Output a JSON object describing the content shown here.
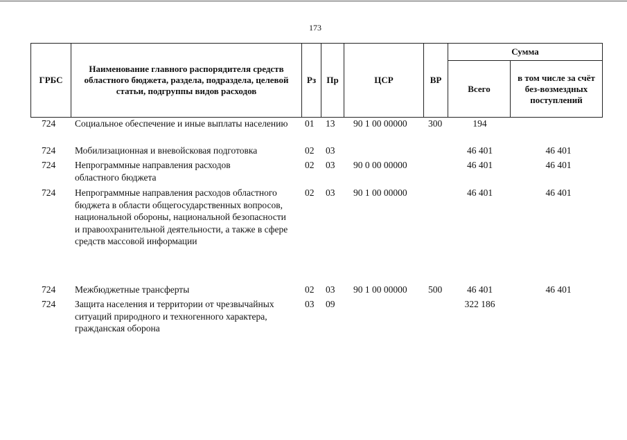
{
  "page_number": "173",
  "header": {
    "grbs": "ГРБС",
    "name": "Наименование главного распорядителя средств областного бюджета, раздела, подраздела, целевой статьи, подгруппы видов расходов",
    "rz": "Рз",
    "pr": "Пр",
    "csr": "ЦСР",
    "vr": "ВР",
    "sum": "Сумма",
    "total": "Всего",
    "free": "в том числе за счёт без-возмездных поступлений"
  },
  "rows": [
    {
      "grbs": "724",
      "name": "Социальное обеспечение и иные выплаты населению",
      "rz": "01",
      "pr": "13",
      "csr": "90 1 00 00000",
      "vr": "300",
      "total": "194",
      "free": ""
    },
    {
      "grbs": "724",
      "name": "Мобилизационная и вневойсковая подготовка",
      "rz": "02",
      "pr": "03",
      "csr": "",
      "vr": "",
      "total": "46 401",
      "free": "46 401"
    },
    {
      "grbs": "724",
      "name": "Непрограммные направления расходов областного бюджета",
      "rz": "02",
      "pr": "03",
      "csr": "90 0 00 00000",
      "vr": "",
      "total": "46 401",
      "free": "46 401"
    },
    {
      "grbs": "724",
      "name": "Непрограммные направления расходов областного бюджета в области общегосударственных вопросов, национальной обороны, национальной безопасности и правоохранительной деятельности, а также в сфере средств массовой информации",
      "rz": "02",
      "pr": "03",
      "csr": "90 1 00 00000",
      "vr": "",
      "total": "46 401",
      "free": "46 401"
    },
    {
      "grbs": "724",
      "name": "Межбюджетные трансферты",
      "rz": "02",
      "pr": "03",
      "csr": "90 1 00 00000",
      "vr": "500",
      "total": "46 401",
      "free": "46 401"
    },
    {
      "grbs": "724",
      "name": "Защита населения и территории от чрезвычайных ситуаций природного и техногенного характера, гражданская оборона",
      "rz": "03",
      "pr": "09",
      "csr": "",
      "vr": "",
      "total": "322 186",
      "free": ""
    }
  ]
}
